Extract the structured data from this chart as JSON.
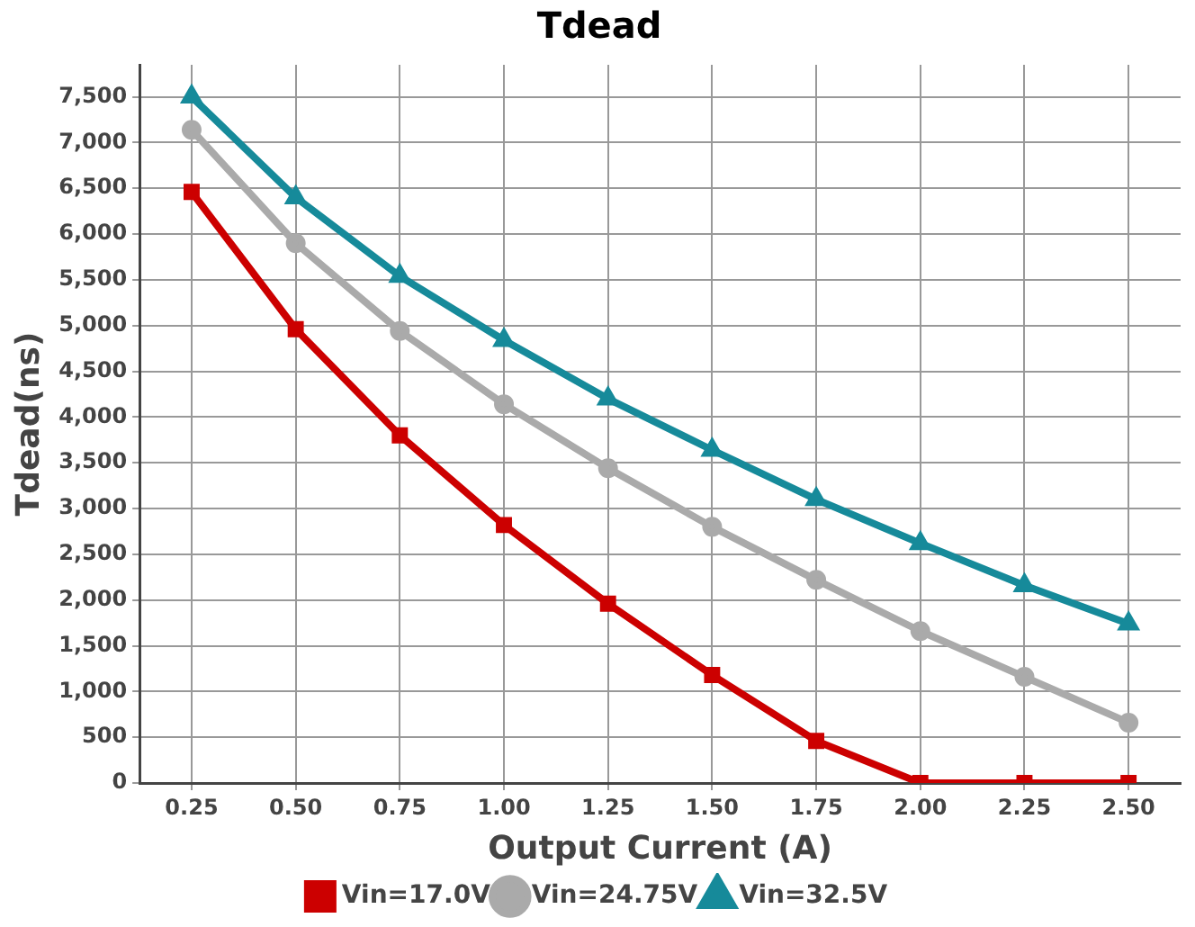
{
  "chart_data": {
    "type": "line",
    "title": "Tdead",
    "xlabel": "Output Current (A)",
    "ylabel": "Tdead(ns)",
    "categories": [
      "0.25",
      "0.50",
      "0.75",
      "1.00",
      "1.25",
      "1.50",
      "1.75",
      "2.00",
      "2.25",
      "2.50"
    ],
    "series": [
      {
        "name": "Vin=17.0V",
        "color": "#cc0000",
        "marker": "square",
        "values": [
          6460,
          4960,
          3800,
          2820,
          1960,
          1180,
          460,
          0,
          0,
          0
        ]
      },
      {
        "name": "Vin=24.75V",
        "color": "#aaaaaa",
        "marker": "circle",
        "values": [
          7140,
          5900,
          4940,
          4140,
          3440,
          2800,
          2220,
          1660,
          1160,
          660
        ]
      },
      {
        "name": "Vin=32.5V",
        "color": "#168a9a",
        "marker": "triangle",
        "values": [
          7500,
          6400,
          5540,
          4840,
          4200,
          3640,
          3100,
          2620,
          2160,
          1740
        ]
      }
    ],
    "ylim": [
      0,
      7850
    ],
    "yticks": [
      {
        "value": 0,
        "label": "0"
      },
      {
        "value": 500,
        "label": "500"
      },
      {
        "value": 1000,
        "label": "1,000"
      },
      {
        "value": 1500,
        "label": "1,500"
      },
      {
        "value": 2000,
        "label": "2,000"
      },
      {
        "value": 2500,
        "label": "2,500"
      },
      {
        "value": 3000,
        "label": "3,000"
      },
      {
        "value": 3500,
        "label": "3,500"
      },
      {
        "value": 4000,
        "label": "4,000"
      },
      {
        "value": 4500,
        "label": "4,500"
      },
      {
        "value": 5000,
        "label": "5,000"
      },
      {
        "value": 5500,
        "label": "5,500"
      },
      {
        "value": 6000,
        "label": "6,000"
      },
      {
        "value": 6500,
        "label": "6,500"
      },
      {
        "value": 7000,
        "label": "7,000"
      },
      {
        "value": 7500,
        "label": "7,500"
      }
    ],
    "grid": true,
    "legend": "bottom",
    "line_style": "solid"
  }
}
